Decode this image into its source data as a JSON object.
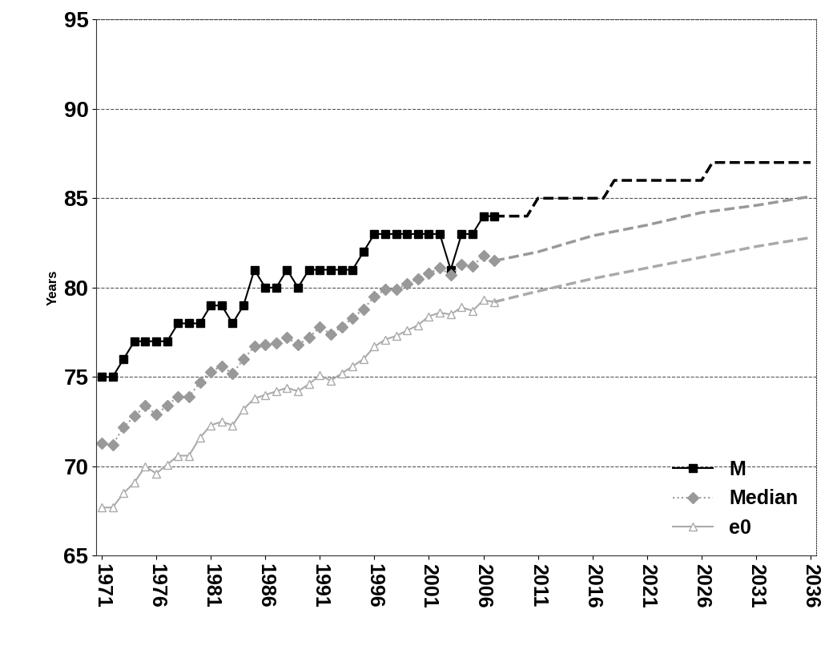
{
  "chart_data": {
    "type": "line",
    "y_label": "Years",
    "xlim": [
      1970.5,
      2036.5
    ],
    "xticks": [
      1971,
      1976,
      1981,
      1986,
      1991,
      1996,
      2001,
      2006,
      2011,
      2016,
      2021,
      2026,
      2031,
      2036
    ],
    "ylim": [
      65,
      95
    ],
    "yticks": [
      65,
      70,
      75,
      80,
      85,
      90,
      95
    ],
    "grid": true,
    "legend": "lower right",
    "series": [
      {
        "name": "M",
        "color": "#000000",
        "marker": "square",
        "line_style": "solid",
        "x": [
          1971,
          1972,
          1973,
          1974,
          1975,
          1976,
          1977,
          1978,
          1979,
          1980,
          1981,
          1982,
          1983,
          1984,
          1985,
          1986,
          1987,
          1988,
          1989,
          1990,
          1991,
          1992,
          1993,
          1994,
          1995,
          1996,
          1997,
          1998,
          1999,
          2000,
          2001,
          2002,
          2003,
          2004,
          2005,
          2006,
          2007
        ],
        "values": [
          75,
          75,
          76,
          77,
          77,
          77,
          77,
          78,
          78,
          78,
          79,
          79,
          78,
          79,
          81,
          80,
          80,
          81,
          80,
          81,
          81,
          81,
          81,
          81,
          82,
          83,
          83,
          83,
          83,
          83,
          83,
          83,
          81,
          83,
          83,
          84,
          84
        ]
      },
      {
        "name": "Median",
        "color": "#999999",
        "marker": "diamond",
        "line_style": "dotted",
        "x": [
          1971,
          1972,
          1973,
          1974,
          1975,
          1976,
          1977,
          1978,
          1979,
          1980,
          1981,
          1982,
          1983,
          1984,
          1985,
          1986,
          1987,
          1988,
          1989,
          1990,
          1991,
          1992,
          1993,
          1994,
          1995,
          1996,
          1997,
          1998,
          1999,
          2000,
          2001,
          2002,
          2003,
          2004,
          2005,
          2006,
          2007
        ],
        "values": [
          71.3,
          71.2,
          72.2,
          72.8,
          73.4,
          72.9,
          73.4,
          73.9,
          73.9,
          74.7,
          75.3,
          75.6,
          75.2,
          76.0,
          76.7,
          76.8,
          76.9,
          77.2,
          76.8,
          77.2,
          77.8,
          77.4,
          77.8,
          78.3,
          78.8,
          79.5,
          79.9,
          79.9,
          80.2,
          80.5,
          80.8,
          81.1,
          80.7,
          81.3,
          81.2,
          81.8,
          81.5
        ]
      },
      {
        "name": "e0",
        "color": "#aaaaaa",
        "marker": "triangle",
        "line_style": "solid",
        "x": [
          1971,
          1972,
          1973,
          1974,
          1975,
          1976,
          1977,
          1978,
          1979,
          1980,
          1981,
          1982,
          1983,
          1984,
          1985,
          1986,
          1987,
          1988,
          1989,
          1990,
          1991,
          1992,
          1993,
          1994,
          1995,
          1996,
          1997,
          1998,
          1999,
          2000,
          2001,
          2002,
          2003,
          2004,
          2005,
          2006,
          2007
        ],
        "values": [
          67.7,
          67.7,
          68.5,
          69.1,
          70.0,
          69.6,
          70.1,
          70.6,
          70.6,
          71.6,
          72.3,
          72.5,
          72.3,
          73.2,
          73.8,
          74.0,
          74.2,
          74.4,
          74.2,
          74.6,
          75.1,
          74.8,
          75.2,
          75.6,
          76.0,
          76.7,
          77.1,
          77.3,
          77.6,
          77.9,
          78.4,
          78.6,
          78.5,
          78.9,
          78.7,
          79.3,
          79.2
        ]
      },
      {
        "color": "#000000",
        "marker": "none",
        "line_style": "dashed",
        "x": [
          2007,
          2008,
          2009,
          2010,
          2011,
          2012,
          2013,
          2014,
          2015,
          2016,
          2017,
          2018,
          2019,
          2020,
          2021,
          2022,
          2023,
          2024,
          2025,
          2026,
          2027,
          2028,
          2029,
          2030,
          2031,
          2032,
          2033,
          2034,
          2035,
          2036
        ],
        "values": [
          84,
          84,
          84,
          84,
          85,
          85,
          85,
          85,
          85,
          85,
          85,
          86,
          86,
          86,
          86,
          86,
          86,
          86,
          86,
          86,
          87,
          87,
          87,
          87,
          87,
          87,
          87,
          87,
          87,
          87
        ]
      },
      {
        "color": "#999999",
        "marker": "none",
        "line_style": "dashed",
        "x": [
          2007,
          2011,
          2016,
          2021,
          2026,
          2031,
          2036
        ],
        "values": [
          81.5,
          82.0,
          82.9,
          83.5,
          84.2,
          84.6,
          85.1
        ]
      },
      {
        "color": "#aaaaaa",
        "marker": "none",
        "line_style": "dashed",
        "x": [
          2007,
          2011,
          2016,
          2021,
          2026,
          2031,
          2036
        ],
        "values": [
          79.2,
          79.8,
          80.5,
          81.1,
          81.7,
          82.3,
          82.8
        ]
      }
    ]
  }
}
